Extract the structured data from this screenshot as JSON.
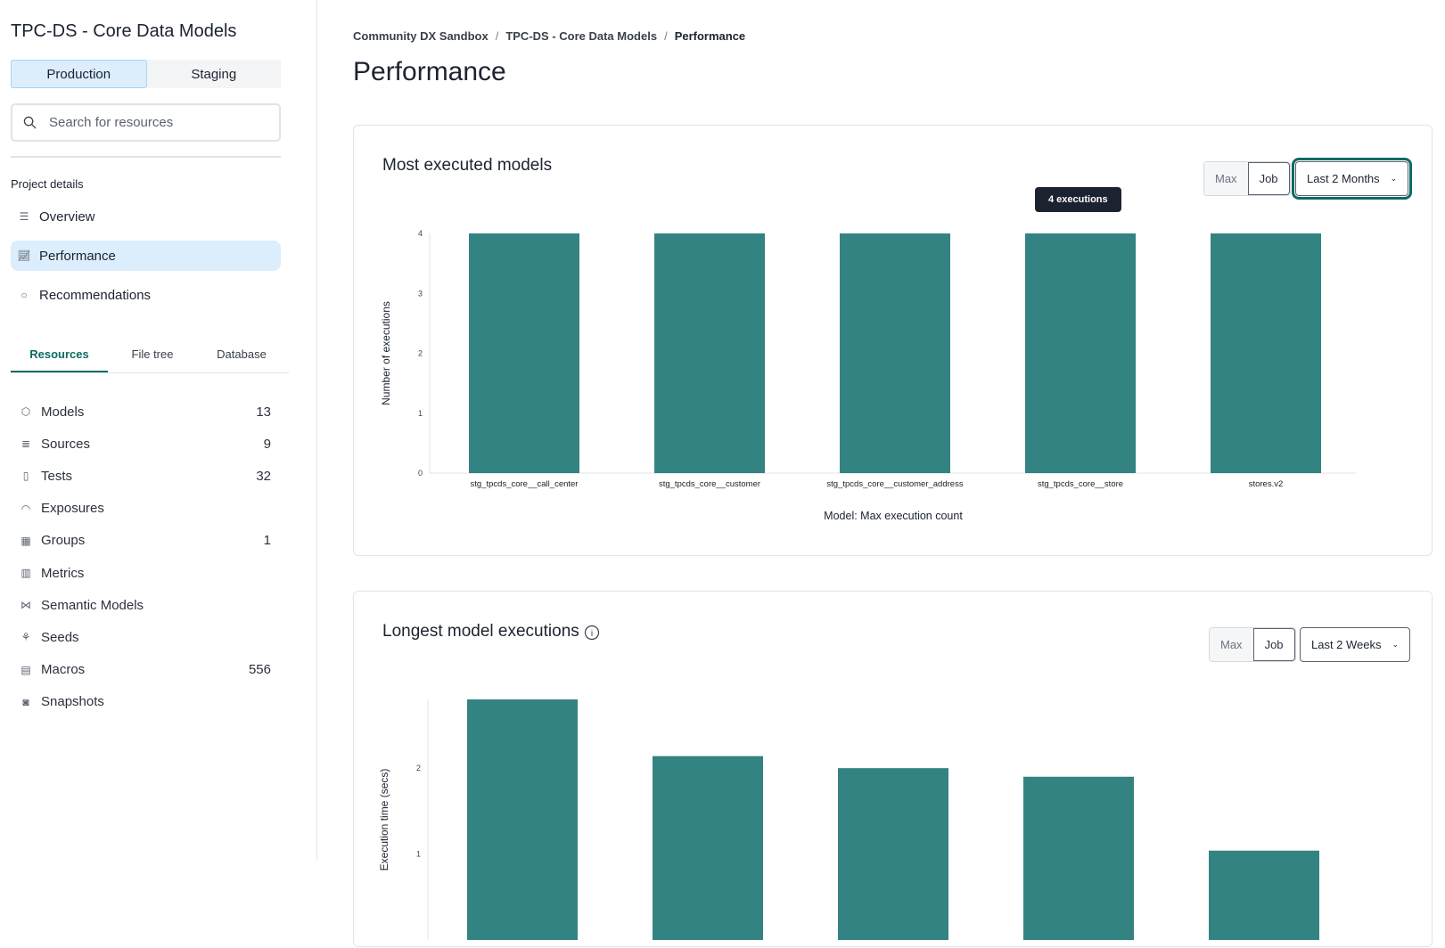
{
  "sidebar": {
    "project_title": "TPC-DS - Core Data Models",
    "env_tabs": [
      {
        "label": "Production",
        "active": true
      },
      {
        "label": "Staging",
        "active": false
      }
    ],
    "search_placeholder": "Search for resources",
    "section_label": "Project details",
    "nav": [
      {
        "label": "Overview",
        "icon": "list-icon"
      },
      {
        "label": "Performance",
        "icon": "line-chart-icon",
        "active": true
      },
      {
        "label": "Recommendations",
        "icon": "lightbulb-icon"
      }
    ],
    "tabs": [
      {
        "label": "Resources",
        "active": true
      },
      {
        "label": "File tree"
      },
      {
        "label": "Database"
      }
    ],
    "resources": [
      {
        "label": "Models",
        "count": "13",
        "icon": "cube-icon"
      },
      {
        "label": "Sources",
        "count": "9",
        "icon": "database-icon"
      },
      {
        "label": "Tests",
        "count": "32",
        "icon": "clipboard-icon"
      },
      {
        "label": "Exposures",
        "count": "",
        "icon": "gauge-icon"
      },
      {
        "label": "Groups",
        "count": "1",
        "icon": "grid-icon"
      },
      {
        "label": "Metrics",
        "count": "",
        "icon": "bar-chart-icon"
      },
      {
        "label": "Semantic Models",
        "count": "",
        "icon": "nodes-icon"
      },
      {
        "label": "Seeds",
        "count": "",
        "icon": "seedling-icon"
      },
      {
        "label": "Macros",
        "count": "556",
        "icon": "file-icon"
      },
      {
        "label": "Snapshots",
        "count": "",
        "icon": "camera-icon"
      }
    ]
  },
  "breadcrumb": [
    "Community DX Sandbox",
    "TPC-DS - Core Data Models",
    "Performance"
  ],
  "page_title": "Performance",
  "accent": "#348383",
  "cards": [
    {
      "title": "Most executed models",
      "toggle": [
        "Max",
        "Job"
      ],
      "toggle_active": "Job",
      "range": "Last 2 Months",
      "tooltip": "4 executions"
    },
    {
      "title": "Longest model executions",
      "toggle": [
        "Max",
        "Job"
      ],
      "toggle_active": "Job",
      "range": "Last 2 Weeks"
    }
  ],
  "chart_data": [
    {
      "type": "bar",
      "title": "",
      "xlabel": "Model: Max execution count",
      "ylabel": "Number of executions",
      "ylim": [
        0,
        4
      ],
      "yticks": [
        0,
        1,
        2,
        3,
        4
      ],
      "categories": [
        "stg_tpcds_core__call_center",
        "stg_tpcds_core__customer",
        "stg_tpcds_core__customer_address",
        "stg_tpcds_core__store",
        "stores.v2"
      ],
      "values": [
        4,
        4,
        4,
        4,
        4
      ],
      "grid": false
    },
    {
      "type": "bar",
      "title": "",
      "ylabel": "Execution time (secs)",
      "ylim": [
        0,
        2.8
      ],
      "yticks": [
        1,
        2
      ],
      "values": [
        2.8,
        2.14,
        2.0,
        1.9,
        1.04
      ],
      "grid": false
    }
  ]
}
